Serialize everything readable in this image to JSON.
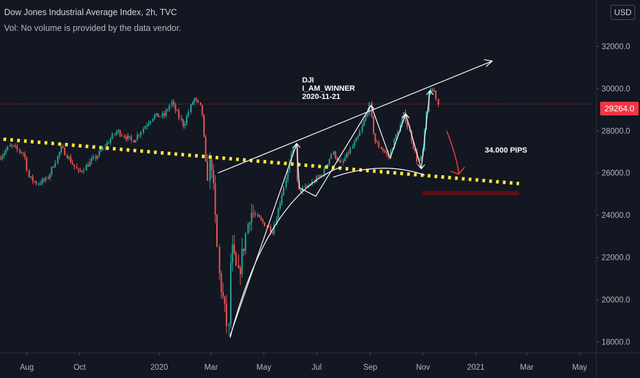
{
  "header": {
    "title": "Dow Jones Industrial Average Index, 2h, TVC",
    "volume_note": "Vol: No volume is provided by the data vendor."
  },
  "price_axis": {
    "currency": "USD",
    "last_price": "29264.0",
    "tick_labels": [
      "18000.0",
      "20000.0",
      "22000.0",
      "24000.0",
      "26000.0",
      "28000.0",
      "30000.0",
      "32000.0"
    ]
  },
  "time_axis": {
    "tick_labels": [
      "Aug",
      "Oct",
      "2020",
      "Mar",
      "May",
      "Jul",
      "Sep",
      "Nov",
      "2021",
      "Mar",
      "May"
    ]
  },
  "annotations": {
    "symbol": "DJI",
    "author": "I_AM_WINNER",
    "date": "2020-11-21",
    "pips_label": "34.000 PIPS"
  },
  "colors": {
    "background": "#131722",
    "up": "#26a69a",
    "down": "#ef5350",
    "trendline_dotted": "#ffeb3b",
    "drawing": "#ffffff",
    "price_tag": "#f23645",
    "support_zone": "#5a0f14"
  },
  "chart_data": {
    "type": "candlestick",
    "symbol": "DJI",
    "interval": "2h",
    "x_range": [
      "2019-07-01",
      "2021-05-20"
    ],
    "y_range": [
      17500,
      33800
    ],
    "last_price": 29264.0,
    "price_path": [
      [
        "2019-07-01",
        26700
      ],
      [
        "2019-07-15",
        27300
      ],
      [
        "2019-07-31",
        26900
      ],
      [
        "2019-08-05",
        25800
      ],
      [
        "2019-08-15",
        25500
      ],
      [
        "2019-08-26",
        25700
      ],
      [
        "2019-09-12",
        27200
      ],
      [
        "2019-10-02",
        26000
      ],
      [
        "2019-10-25",
        26900
      ],
      [
        "2019-11-15",
        28000
      ],
      [
        "2019-12-03",
        27500
      ],
      [
        "2019-12-27",
        28700
      ],
      [
        "2020-01-08",
        28700
      ],
      [
        "2020-01-17",
        29350
      ],
      [
        "2020-01-31",
        28250
      ],
      [
        "2020-02-12",
        29550
      ],
      [
        "2020-02-21",
        29000
      ],
      [
        "2020-02-27",
        25800
      ],
      [
        "2020-03-03",
        26700
      ],
      [
        "2020-03-12",
        21200
      ],
      [
        "2020-03-16",
        20200
      ],
      [
        "2020-03-23",
        18300
      ],
      [
        "2020-03-26",
        22600
      ],
      [
        "2020-04-03",
        21050
      ],
      [
        "2020-04-17",
        24200
      ],
      [
        "2020-05-13",
        23250
      ],
      [
        "2020-06-08",
        27500
      ],
      [
        "2020-06-11",
        25100
      ],
      [
        "2020-06-24",
        25400
      ],
      [
        "2020-07-10",
        26000
      ],
      [
        "2020-07-21",
        27000
      ],
      [
        "2020-07-31",
        26400
      ],
      [
        "2020-08-20",
        27700
      ],
      [
        "2020-09-02",
        29200
      ],
      [
        "2020-09-08",
        27500
      ],
      [
        "2020-09-24",
        26800
      ],
      [
        "2020-10-12",
        28800
      ],
      [
        "2020-10-28",
        26500
      ],
      [
        "2020-11-02",
        26800
      ],
      [
        "2020-11-06",
        28400
      ],
      [
        "2020-11-09",
        29800
      ],
      [
        "2020-11-16",
        29900
      ],
      [
        "2020-11-20",
        29264
      ]
    ]
  }
}
